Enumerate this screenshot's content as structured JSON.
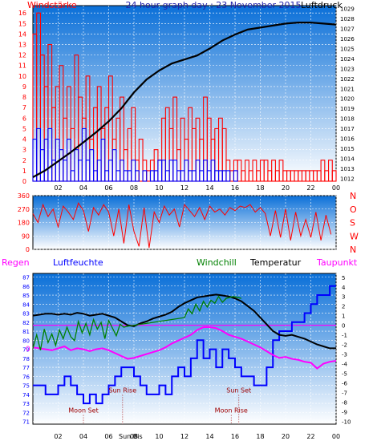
{
  "colors": {
    "plot_top": "#0a6fd8",
    "plot_bottom": "#ffffff",
    "grid": "#ffffff",
    "border": "#000000",
    "red_series": "#ff0000",
    "blue_series": "#0000ff",
    "black_series": "#000000",
    "green_series": "#008000",
    "magenta_series": "#ff00ff",
    "title_color": "#1f1fa8"
  },
  "x_tick_labels": [
    "02",
    "04",
    "06",
    "08",
    "10",
    "12",
    "14",
    "16",
    "18",
    "20",
    "22",
    "00"
  ],
  "chart_data": [
    {
      "id": "wind-pressure",
      "type": "bar",
      "title": "24 hour graph day : 23 November 2015",
      "left_axis_label": "Windstärke",
      "right_axis_label": "Luftdruck",
      "left_ticks": [
        "0",
        "1",
        "2",
        "3",
        "4",
        "5",
        "6",
        "7",
        "8",
        "9",
        "10",
        "11",
        "12",
        "13",
        "14",
        "15",
        "16"
      ],
      "right_ticks": [
        "1012",
        "1013",
        "1014",
        "1015",
        "1016",
        "1017",
        "1018",
        "1019",
        "1020",
        "1021",
        "1022",
        "1023",
        "1024",
        "1025",
        "1026",
        "1027",
        "1028",
        "1029"
      ],
      "left_ylim": [
        0,
        16.7
      ],
      "right_ylim": [
        1011.7,
        1029.3
      ],
      "xlim": [
        0,
        24
      ],
      "grid": true,
      "series": [
        {
          "name": "gust",
          "color_key": "red_series",
          "x": [
            0,
            0.3,
            0.6,
            0.9,
            1.2,
            1.5,
            1.8,
            2.1,
            2.4,
            2.7,
            3.0,
            3.3,
            3.6,
            3.9,
            4.2,
            4.5,
            4.8,
            5.1,
            5.4,
            5.7,
            6.0,
            6.3,
            6.6,
            6.9,
            7.2,
            7.5,
            7.8,
            8.1,
            8.4,
            8.7,
            9.0,
            9.3,
            9.6,
            9.9,
            10.2,
            10.5,
            10.8,
            11.1,
            11.4,
            11.7,
            12.0,
            12.3,
            12.6,
            12.9,
            13.2,
            13.5,
            13.8,
            14.1,
            14.4,
            14.7,
            15.0,
            15.3,
            15.6,
            15.9,
            16.2,
            16.5,
            16.8,
            17.1,
            17.4,
            17.7,
            18.0,
            18.3,
            18.6,
            18.9,
            19.2,
            19.5,
            19.8,
            20.1,
            20.4,
            20.7,
            21.0,
            21.3,
            21.6,
            21.9,
            22.2,
            22.5,
            22.8,
            23.1,
            23.4,
            23.7
          ],
          "values": [
            14,
            16,
            12,
            9,
            13,
            7,
            9,
            11,
            6,
            9,
            5,
            12,
            8,
            6,
            10,
            4,
            7,
            9,
            5,
            7,
            10,
            4,
            6,
            8,
            3,
            5,
            7,
            2,
            4,
            2,
            1,
            2,
            3,
            2,
            6,
            7,
            5,
            8,
            3,
            6,
            4,
            7,
            5,
            6,
            4,
            8,
            6,
            4,
            5,
            6,
            5,
            2,
            1,
            2,
            2,
            1,
            2,
            1,
            2,
            1,
            2,
            2,
            1,
            2,
            1,
            2,
            1,
            1,
            1,
            1,
            1,
            1,
            1,
            1,
            1,
            1,
            2,
            1,
            2,
            1
          ]
        },
        {
          "name": "wind",
          "color_key": "blue_series",
          "x": [
            0,
            0.3,
            0.6,
            0.9,
            1.2,
            1.5,
            1.8,
            2.1,
            2.4,
            2.7,
            3.0,
            3.3,
            3.6,
            3.9,
            4.2,
            4.5,
            4.8,
            5.1,
            5.4,
            5.7,
            6.0,
            6.3,
            6.6,
            6.9,
            7.2,
            7.5,
            7.8,
            8.1,
            8.4,
            8.7,
            9.0,
            9.3,
            9.6,
            9.9,
            10.2,
            10.5,
            10.8,
            11.1,
            11.4,
            11.7,
            12.0,
            12.3,
            12.6,
            12.9,
            13.2,
            13.5,
            13.8,
            14.1,
            14.4,
            14.7,
            15.0,
            15.3,
            15.6,
            15.9
          ],
          "values": [
            4,
            5,
            3,
            4,
            5,
            2,
            4,
            3,
            2,
            4,
            1,
            3,
            2,
            5,
            2,
            3,
            1,
            2,
            4,
            1,
            2,
            3,
            1,
            2,
            1,
            1,
            2,
            1,
            0,
            1,
            0,
            1,
            1,
            2,
            2,
            1,
            2,
            2,
            1,
            1,
            2,
            1,
            1,
            2,
            1,
            2,
            1,
            2,
            1,
            1,
            1,
            1,
            0,
            1
          ]
        },
        {
          "name": "pressure",
          "color_key": "black_series",
          "axis": "right",
          "x": [
            0,
            1,
            2,
            3,
            4,
            5,
            6,
            7,
            8,
            9,
            10,
            11,
            12,
            13,
            14,
            15,
            16,
            17,
            18,
            19,
            20,
            21,
            22,
            23,
            24
          ],
          "values": [
            1012.1,
            1012.8,
            1013.7,
            1014.6,
            1015.6,
            1016.6,
            1017.7,
            1019.0,
            1020.6,
            1021.9,
            1022.8,
            1023.5,
            1023.9,
            1024.3,
            1025.0,
            1025.8,
            1026.4,
            1026.9,
            1027.1,
            1027.3,
            1027.5,
            1027.6,
            1027.6,
            1027.5,
            1027.4
          ]
        }
      ]
    },
    {
      "id": "wind-direction",
      "type": "line",
      "left_ticks": [
        "0",
        "90",
        "180",
        "270",
        "360"
      ],
      "right_ticks": [
        "N",
        "W",
        "S",
        "O",
        "N"
      ],
      "ylim": [
        0,
        360
      ],
      "xlim": [
        0,
        24
      ],
      "grid": true,
      "series": [
        {
          "name": "direction",
          "color_key": "red_series",
          "x": [
            0,
            0.4,
            0.8,
            1.2,
            1.6,
            2.0,
            2.4,
            2.8,
            3.2,
            3.6,
            4.0,
            4.4,
            4.8,
            5.2,
            5.6,
            6.0,
            6.4,
            6.8,
            7.2,
            7.6,
            8.0,
            8.4,
            8.8,
            9.2,
            9.6,
            10.0,
            10.4,
            10.8,
            11.2,
            11.6,
            12.0,
            12.4,
            12.8,
            13.2,
            13.6,
            14.0,
            14.4,
            14.8,
            15.2,
            15.6,
            16.0,
            16.4,
            16.8,
            17.2,
            17.6,
            18.0,
            18.4,
            18.8,
            19.2,
            19.6,
            20.0,
            20.4,
            20.8,
            21.2,
            21.6,
            22.0,
            22.4,
            22.8,
            23.2,
            23.6
          ],
          "values": [
            240,
            180,
            300,
            220,
            270,
            150,
            290,
            250,
            200,
            310,
            260,
            120,
            280,
            230,
            300,
            250,
            90,
            270,
            40,
            300,
            120,
            20,
            280,
            10,
            250,
            180,
            290,
            230,
            270,
            150,
            300,
            260,
            220,
            280,
            200,
            290,
            250,
            270,
            230,
            280,
            260,
            290,
            280,
            300,
            250,
            280,
            240,
            90,
            260,
            80,
            270,
            60,
            250,
            90,
            200,
            80,
            250,
            60,
            230,
            100
          ]
        }
      ]
    },
    {
      "id": "humidity-temperature",
      "type": "line",
      "legend": [
        "Regen",
        "Luftfeuchte",
        "Windchill",
        "Temperatur",
        "Taupunkt"
      ],
      "left_ticks": [
        "71",
        "72",
        "73",
        "74",
        "75",
        "76",
        "77",
        "78",
        "79",
        "80",
        "81",
        "82",
        "83",
        "84",
        "85",
        "86",
        "87"
      ],
      "right_ticks": [
        "5",
        "4",
        "3",
        "2",
        "1",
        "0",
        "-1",
        "-2",
        "-3",
        "-4",
        "-5",
        "-6",
        "-7",
        "-8",
        "-9",
        "-10"
      ],
      "left_ylim": [
        70.7,
        87.4
      ],
      "right_ylim": [
        -10.3,
        5.4
      ],
      "xlim": [
        0,
        24
      ],
      "rain_axis_label": "0",
      "grid": true,
      "annotations": [
        {
          "label": "Moon Set",
          "x": 4.0,
          "y_right": -9.1
        },
        {
          "label": "Sun Rise",
          "x": 7.1,
          "y_right": -7.0
        },
        {
          "label": "Sun Set",
          "x": 16.3,
          "y_right": -7.0
        },
        {
          "label": "Moon Rise",
          "x": 15.7,
          "y_right": -9.1
        }
      ],
      "bottom_labels": [
        "Sun Bis"
      ],
      "series": [
        {
          "name": "Luftfeuchte",
          "color_key": "blue_series",
          "axis": "left",
          "x": [
            0,
            0.5,
            1.0,
            1.5,
            2.0,
            2.5,
            3.0,
            3.5,
            4.0,
            4.5,
            5.0,
            5.5,
            6.0,
            6.5,
            7.0,
            7.5,
            8.0,
            8.5,
            9.0,
            9.5,
            10.0,
            10.5,
            11.0,
            11.5,
            12.0,
            12.5,
            13.0,
            13.5,
            14.0,
            14.5,
            15.0,
            15.5,
            16.0,
            16.5,
            17.0,
            17.5,
            18.0,
            18.5,
            19.0,
            19.5,
            20.0,
            20.5,
            21.0,
            21.5,
            22.0,
            22.5,
            23.0,
            23.5,
            24.0
          ],
          "values": [
            75,
            75,
            74,
            74,
            75,
            76,
            75,
            74,
            73,
            74,
            73,
            74,
            75,
            76,
            77,
            77,
            76,
            75,
            74,
            74,
            75,
            74,
            76,
            77,
            76,
            78,
            80,
            78,
            79,
            77,
            79,
            78,
            77,
            76,
            76,
            75,
            75,
            77,
            80,
            81,
            81,
            82,
            82,
            83,
            84,
            85,
            85,
            86,
            86
          ]
        },
        {
          "name": "Temperatur",
          "color_key": "black_series",
          "axis": "right",
          "x": [
            0,
            0.5,
            1.0,
            1.5,
            2.0,
            2.5,
            3.0,
            3.5,
            4.0,
            4.5,
            5.0,
            5.5,
            6.0,
            6.5,
            7.0,
            7.5,
            8.0,
            8.5,
            9.0,
            9.5,
            10.0,
            10.5,
            11.0,
            11.5,
            12.0,
            12.5,
            13.0,
            13.5,
            14.0,
            14.5,
            15.0,
            15.5,
            16.0,
            16.5,
            17.0,
            17.5,
            18.0,
            18.5,
            19.0,
            19.5,
            20.0,
            20.5,
            21.0,
            21.5,
            22.0,
            22.5,
            23.0,
            23.5,
            24.0
          ],
          "values": [
            1.0,
            1.1,
            1.2,
            1.2,
            1.1,
            1.2,
            1.1,
            1.3,
            1.2,
            1.0,
            1.1,
            1.2,
            1.0,
            0.8,
            0.4,
            0.0,
            -0.1,
            0.2,
            0.4,
            0.7,
            0.9,
            1.1,
            1.4,
            1.9,
            2.3,
            2.6,
            2.9,
            3.0,
            3.1,
            3.2,
            3.1,
            3.0,
            2.8,
            2.5,
            2.0,
            1.5,
            0.8,
            0.1,
            -0.6,
            -1.0,
            -1.1,
            -1.0,
            -1.2,
            -1.4,
            -1.7,
            -2.0,
            -2.2,
            -2.4,
            -2.4
          ]
        },
        {
          "name": "Windchill",
          "color_key": "green_series",
          "axis": "right",
          "x": [
            0,
            0.3,
            0.6,
            0.9,
            1.2,
            1.5,
            1.8,
            2.1,
            2.4,
            2.7,
            3.0,
            3.3,
            3.6,
            3.9,
            4.2,
            4.5,
            4.8,
            5.1,
            5.4,
            5.7,
            6.0,
            6.3,
            6.6,
            6.9,
            7.2,
            7.5,
            12.0,
            12.3,
            12.6,
            12.9,
            13.2,
            13.5,
            13.8,
            14.1,
            14.4,
            14.7,
            15.0,
            15.3,
            15.6,
            15.9,
            16.2,
            16.5
          ],
          "values": [
            -2.4,
            -1.0,
            -2.6,
            -0.4,
            -1.8,
            -0.9,
            -2.1,
            -0.5,
            -1.4,
            -0.2,
            -1.2,
            -1.6,
            0.4,
            -0.8,
            0.2,
            -1.0,
            0.6,
            -0.4,
            0.3,
            -1.4,
            0.5,
            -0.3,
            -1.1,
            0.1,
            -0.2,
            -0.1,
            0.8,
            1.7,
            1.2,
            2.2,
            1.5,
            2.5,
            1.9,
            2.6,
            2.3,
            3.0,
            2.4,
            2.8,
            2.9,
            3.0,
            2.9,
            2.8
          ]
        },
        {
          "name": "Taupunkt",
          "color_key": "magenta_series",
          "axis": "right",
          "x": [
            0,
            0.5,
            1.0,
            1.5,
            2.0,
            2.5,
            3.0,
            3.5,
            4.0,
            4.5,
            5.0,
            5.5,
            6.0,
            6.5,
            7.0,
            7.5,
            8.0,
            8.5,
            9.0,
            9.5,
            10.0,
            10.5,
            11.0,
            11.5,
            12.0,
            12.5,
            13.0,
            13.5,
            14.0,
            14.5,
            15.0,
            15.5,
            16.0,
            16.5,
            17.0,
            17.5,
            18.0,
            18.5,
            19.0,
            19.5,
            20.0,
            20.5,
            21.0,
            21.5,
            22.0,
            22.5,
            23.0,
            23.5,
            24.0
          ],
          "values": [
            -2.3,
            -2.4,
            -2.5,
            -2.6,
            -2.4,
            -2.2,
            -2.6,
            -2.4,
            -2.5,
            -2.7,
            -2.5,
            -2.4,
            -2.6,
            -2.9,
            -3.2,
            -3.5,
            -3.4,
            -3.2,
            -3.0,
            -2.8,
            -2.6,
            -2.3,
            -1.9,
            -1.6,
            -1.3,
            -1.0,
            -0.5,
            -0.2,
            -0.2,
            -0.3,
            -0.6,
            -1.0,
            -1.2,
            -1.4,
            -1.7,
            -2.0,
            -2.3,
            -2.7,
            -3.1,
            -3.4,
            -3.3,
            -3.5,
            -3.6,
            -3.8,
            -3.9,
            -4.5,
            -4.0,
            -3.8,
            -3.7
          ]
        }
      ]
    }
  ]
}
